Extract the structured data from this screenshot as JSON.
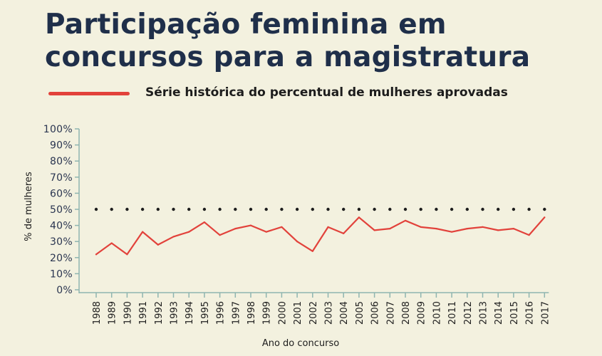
{
  "title": "Participação feminina em concursos para a magistratura",
  "legend": {
    "label": "Série histórica do percentual de mulheres aprovadas",
    "color": "#e2423b"
  },
  "colors": {
    "background": "#f3f1df",
    "title": "#1f2f4a",
    "axis": "#8fb5b0",
    "line": "#e2423b",
    "reference": "#1d1d1d"
  },
  "chart_data": {
    "type": "line",
    "title": "Participação feminina em concursos para a magistratura",
    "xlabel": "Ano do concurso",
    "ylabel": "% de mulheres",
    "ylim": [
      0,
      100
    ],
    "yticks": [
      "0%",
      "10%",
      "20%",
      "30%",
      "40%",
      "50%",
      "60%",
      "70%",
      "80%",
      "90%",
      "100%"
    ],
    "categories": [
      "1988",
      "1989",
      "1990",
      "1991",
      "1992",
      "1993",
      "1994",
      "1995",
      "1996",
      "1997",
      "1998",
      "1999",
      "2000",
      "2001",
      "2002",
      "2003",
      "2004",
      "2005",
      "2006",
      "2007",
      "2008",
      "2009",
      "2010",
      "2011",
      "2012",
      "2013",
      "2014",
      "2015",
      "2016",
      "2017"
    ],
    "series": [
      {
        "name": "Série histórica do percentual de mulheres aprovadas",
        "values": [
          22,
          29,
          22,
          36,
          28,
          33,
          36,
          42,
          34,
          38,
          40,
          36,
          39,
          30,
          24,
          39,
          35,
          45,
          37,
          38,
          43,
          39,
          38,
          36,
          38,
          39,
          37,
          38,
          34,
          45
        ]
      }
    ],
    "reference_line": {
      "value": 50,
      "style": "dotted"
    },
    "grid": false,
    "legend_position": "top"
  }
}
